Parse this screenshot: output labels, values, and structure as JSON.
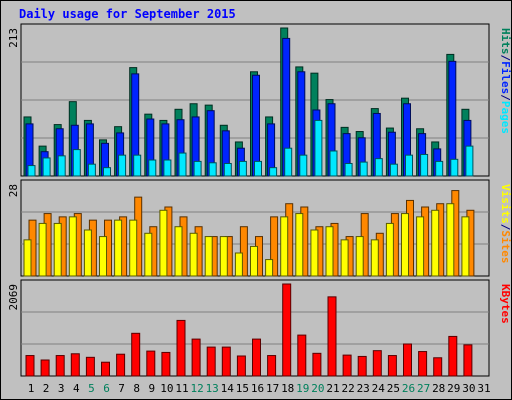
{
  "title": "Daily usage for September 2015",
  "colors": {
    "hits": "#00805c",
    "files": "#0024ff",
    "pages": "#00e8ff",
    "visits": "#ff8800",
    "sites": "#ffff00",
    "kbytes": "#ff0000",
    "weekend_label": "#00805c",
    "weekday_label": "#000000",
    "slash": "#000080"
  },
  "chart_data": [
    {
      "type": "bar",
      "panel": "hits-files-pages",
      "ymax_label": "213",
      "ylim": [
        0,
        213
      ],
      "side_labels": [
        "Pages",
        "/",
        "Files",
        "/",
        "Hits"
      ],
      "x": [
        "1",
        "2",
        "3",
        "4",
        "5",
        "6",
        "7",
        "8",
        "9",
        "10",
        "11",
        "12",
        "13",
        "14",
        "15",
        "16",
        "17",
        "18",
        "19",
        "20",
        "21",
        "22",
        "23",
        "24",
        "25",
        "26",
        "27",
        "28",
        "29",
        "30"
      ],
      "series": [
        {
          "name": "Hits",
          "values": [
            85,
            43,
            74,
            107,
            80,
            52,
            71,
            156,
            89,
            80,
            96,
            104,
            102,
            73,
            49,
            150,
            85,
            213,
            157,
            148,
            110,
            70,
            64,
            97,
            69,
            112,
            68,
            49,
            175,
            96
          ]
        },
        {
          "name": "Files",
          "values": [
            75,
            35,
            68,
            73,
            75,
            47,
            62,
            147,
            82,
            75,
            81,
            85,
            94,
            65,
            40,
            145,
            75,
            198,
            150,
            95,
            104,
            61,
            55,
            90,
            63,
            104,
            61,
            39,
            165,
            80
          ]
        },
        {
          "name": "Pages",
          "values": [
            15,
            26,
            29,
            38,
            17,
            12,
            30,
            30,
            23,
            23,
            33,
            21,
            19,
            18,
            21,
            21,
            12,
            40,
            30,
            80,
            36,
            18,
            20,
            25,
            17,
            30,
            31,
            21,
            24,
            43
          ]
        }
      ]
    },
    {
      "type": "bar",
      "panel": "visits-sites",
      "ymax_label": "28",
      "ylim": [
        0,
        28
      ],
      "side_labels": [
        "Sites",
        "/",
        "Visits"
      ],
      "x": [
        "1",
        "2",
        "3",
        "4",
        "5",
        "6",
        "7",
        "8",
        "9",
        "10",
        "11",
        "12",
        "13",
        "14",
        "15",
        "16",
        "17",
        "18",
        "19",
        "20",
        "21",
        "22",
        "23",
        "24",
        "25",
        "26",
        "27",
        "28",
        "29",
        "30"
      ],
      "series": [
        {
          "name": "Visits",
          "values": [
            17,
            19,
            18,
            19,
            17,
            17,
            18,
            24,
            15,
            21,
            18,
            15,
            12,
            12,
            15,
            12,
            18,
            22,
            21,
            15,
            16,
            12,
            19,
            13,
            19,
            23,
            21,
            22,
            26,
            20
          ]
        },
        {
          "name": "Sites",
          "values": [
            11,
            16,
            16,
            18,
            14,
            12,
            17,
            17,
            13,
            20,
            15,
            13,
            12,
            12,
            7,
            9,
            5,
            18,
            19,
            14,
            15,
            11,
            12,
            11,
            16,
            19,
            18,
            20,
            22,
            18
          ]
        }
      ]
    },
    {
      "type": "bar",
      "panel": "kbytes",
      "ymax_label": "2069",
      "ylim": [
        0,
        2069
      ],
      "side_labels": [
        "KBytes"
      ],
      "x": [
        "1",
        "2",
        "3",
        "4",
        "5",
        "6",
        "7",
        "8",
        "9",
        "10",
        "11",
        "12",
        "13",
        "14",
        "15",
        "16",
        "17",
        "18",
        "19",
        "20",
        "21",
        "22",
        "23",
        "24",
        "25",
        "26",
        "27",
        "28",
        "29",
        "30"
      ],
      "series": [
        {
          "name": "KBytes",
          "values": [
            460,
            360,
            460,
            500,
            420,
            310,
            490,
            960,
            560,
            530,
            1250,
            830,
            650,
            650,
            450,
            830,
            460,
            2069,
            920,
            510,
            1780,
            470,
            440,
            570,
            460,
            720,
            550,
            410,
            890,
            700
          ]
        }
      ]
    }
  ],
  "x_labels": [
    "1",
    "2",
    "3",
    "4",
    "5",
    "6",
    "7",
    "8",
    "9",
    "10",
    "11",
    "12",
    "13",
    "14",
    "15",
    "16",
    "17",
    "18",
    "19",
    "20",
    "21",
    "22",
    "23",
    "24",
    "25",
    "26",
    "27",
    "28",
    "29",
    "30",
    "31"
  ],
  "weekend_days": [
    "5",
    "6",
    "12",
    "13",
    "19",
    "20",
    "26",
    "27"
  ]
}
